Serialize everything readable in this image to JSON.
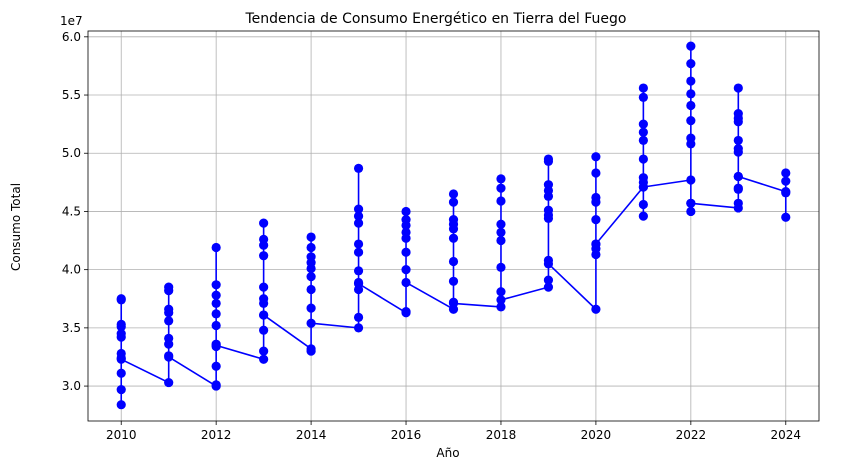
{
  "chart_data": {
    "type": "line",
    "title": "Tendencia de Consumo Energético en Tierra del Fuego",
    "xlabel": "Año",
    "ylabel": "Consumo Total",
    "y_offset_label": "1e7",
    "xlim": [
      2009.3,
      2024.7
    ],
    "ylim": [
      27000000,
      60500000
    ],
    "grid": true,
    "color": "#0000ff",
    "x_ticks": [
      2010,
      2012,
      2014,
      2016,
      2018,
      2020,
      2022,
      2024
    ],
    "x_tick_labels": [
      "2010",
      "2012",
      "2014",
      "2016",
      "2018",
      "2020",
      "2022",
      "2024"
    ],
    "y_ticks": [
      30000000,
      35000000,
      40000000,
      45000000,
      50000000,
      55000000,
      60000000
    ],
    "y_tick_labels": [
      "3.0",
      "3.5",
      "4.0",
      "4.5",
      "5.0",
      "5.5",
      "6.0"
    ],
    "series": [
      {
        "points": [
          [
            2010,
            37500000
          ],
          [
            2010,
            37400000
          ],
          [
            2010,
            35300000
          ],
          [
            2010,
            35100000
          ],
          [
            2010,
            34500000
          ],
          [
            2010,
            34200000
          ],
          [
            2010,
            32800000
          ],
          [
            2010,
            32400000
          ],
          [
            2010,
            31100000
          ],
          [
            2010,
            29700000
          ],
          [
            2010,
            28400000
          ],
          [
            2010,
            32300000
          ],
          [
            2011,
            30300000
          ],
          [
            2011,
            38500000
          ],
          [
            2011,
            38200000
          ],
          [
            2011,
            36600000
          ],
          [
            2011,
            36300000
          ],
          [
            2011,
            35600000
          ],
          [
            2011,
            34100000
          ],
          [
            2011,
            33600000
          ],
          [
            2011,
            32600000
          ],
          [
            2011,
            32500000
          ],
          [
            2012,
            30000000
          ],
          [
            2012,
            30100000
          ],
          [
            2012,
            41900000
          ],
          [
            2012,
            38700000
          ],
          [
            2012,
            37800000
          ],
          [
            2012,
            37100000
          ],
          [
            2012,
            36200000
          ],
          [
            2012,
            35200000
          ],
          [
            2012,
            33600000
          ],
          [
            2012,
            33400000
          ],
          [
            2012,
            31700000
          ],
          [
            2012,
            33500000
          ],
          [
            2013,
            32300000
          ],
          [
            2013,
            44000000
          ],
          [
            2013,
            42600000
          ],
          [
            2013,
            42100000
          ],
          [
            2013,
            41200000
          ],
          [
            2013,
            38500000
          ],
          [
            2013,
            37500000
          ],
          [
            2013,
            37100000
          ],
          [
            2013,
            36100000
          ],
          [
            2013,
            34800000
          ],
          [
            2013,
            33000000
          ],
          [
            2013,
            36100000
          ],
          [
            2014,
            33200000
          ],
          [
            2014,
            33000000
          ],
          [
            2014,
            42800000
          ],
          [
            2014,
            41900000
          ],
          [
            2014,
            41100000
          ],
          [
            2014,
            40600000
          ],
          [
            2014,
            40100000
          ],
          [
            2014,
            39400000
          ],
          [
            2014,
            38300000
          ],
          [
            2014,
            36700000
          ],
          [
            2014,
            35400000
          ],
          [
            2015,
            35000000
          ],
          [
            2015,
            48700000
          ],
          [
            2015,
            45200000
          ],
          [
            2015,
            44600000
          ],
          [
            2015,
            44000000
          ],
          [
            2015,
            42200000
          ],
          [
            2015,
            41500000
          ],
          [
            2015,
            39900000
          ],
          [
            2015,
            38900000
          ],
          [
            2015,
            38300000
          ],
          [
            2015,
            35900000
          ],
          [
            2015,
            38800000
          ],
          [
            2016,
            36300000
          ],
          [
            2016,
            36400000
          ],
          [
            2016,
            45000000
          ],
          [
            2016,
            44300000
          ],
          [
            2016,
            43800000
          ],
          [
            2016,
            43200000
          ],
          [
            2016,
            42700000
          ],
          [
            2016,
            41500000
          ],
          [
            2016,
            40000000
          ],
          [
            2016,
            38900000
          ],
          [
            2017,
            36600000
          ],
          [
            2017,
            46500000
          ],
          [
            2017,
            45800000
          ],
          [
            2017,
            44300000
          ],
          [
            2017,
            43900000
          ],
          [
            2017,
            43500000
          ],
          [
            2017,
            42700000
          ],
          [
            2017,
            40700000
          ],
          [
            2017,
            39000000
          ],
          [
            2017,
            37200000
          ],
          [
            2017,
            37100000
          ],
          [
            2018,
            36800000
          ],
          [
            2018,
            47800000
          ],
          [
            2018,
            47000000
          ],
          [
            2018,
            45900000
          ],
          [
            2018,
            43900000
          ],
          [
            2018,
            43200000
          ],
          [
            2018,
            42500000
          ],
          [
            2018,
            40200000
          ],
          [
            2018,
            38100000
          ],
          [
            2018,
            37400000
          ],
          [
            2019,
            38500000
          ],
          [
            2019,
            49500000
          ],
          [
            2019,
            49300000
          ],
          [
            2019,
            47300000
          ],
          [
            2019,
            46800000
          ],
          [
            2019,
            46300000
          ],
          [
            2019,
            45100000
          ],
          [
            2019,
            44700000
          ],
          [
            2019,
            44400000
          ],
          [
            2019,
            40800000
          ],
          [
            2019,
            39100000
          ],
          [
            2019,
            40500000
          ],
          [
            2020,
            36600000
          ],
          [
            2020,
            49700000
          ],
          [
            2020,
            48300000
          ],
          [
            2020,
            46200000
          ],
          [
            2020,
            45800000
          ],
          [
            2020,
            44300000
          ],
          [
            2020,
            42200000
          ],
          [
            2020,
            41800000
          ],
          [
            2020,
            41300000
          ],
          [
            2020,
            42200000
          ],
          [
            2021,
            47100000
          ],
          [
            2021,
            55600000
          ],
          [
            2021,
            54800000
          ],
          [
            2021,
            52500000
          ],
          [
            2021,
            51800000
          ],
          [
            2021,
            51100000
          ],
          [
            2021,
            49500000
          ],
          [
            2021,
            47900000
          ],
          [
            2021,
            47500000
          ],
          [
            2021,
            45600000
          ],
          [
            2021,
            44600000
          ],
          [
            2021,
            47100000
          ],
          [
            2022,
            47700000
          ],
          [
            2022,
            59200000
          ],
          [
            2022,
            57700000
          ],
          [
            2022,
            56200000
          ],
          [
            2022,
            55100000
          ],
          [
            2022,
            54100000
          ],
          [
            2022,
            52800000
          ],
          [
            2022,
            51300000
          ],
          [
            2022,
            50800000
          ],
          [
            2022,
            45700000
          ],
          [
            2022,
            45000000
          ],
          [
            2022,
            45700000
          ],
          [
            2023,
            45300000
          ],
          [
            2023,
            55600000
          ],
          [
            2023,
            53400000
          ],
          [
            2023,
            53000000
          ],
          [
            2023,
            52700000
          ],
          [
            2023,
            51100000
          ],
          [
            2023,
            50400000
          ],
          [
            2023,
            50100000
          ],
          [
            2023,
            48000000
          ],
          [
            2023,
            47000000
          ],
          [
            2023,
            46900000
          ],
          [
            2023,
            45700000
          ],
          [
            2023,
            48000000
          ],
          [
            2024,
            46700000
          ],
          [
            2024,
            48300000
          ],
          [
            2024,
            47600000
          ],
          [
            2024,
            46600000
          ],
          [
            2024,
            44500000
          ]
        ]
      }
    ]
  }
}
